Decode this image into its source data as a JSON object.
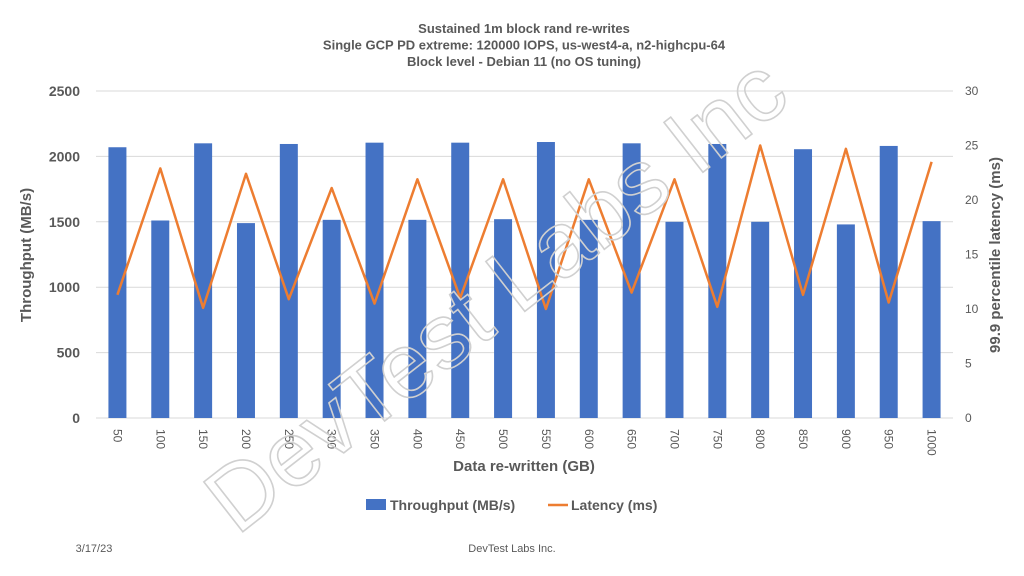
{
  "chart_data": {
    "type": "bar",
    "title_lines": [
      "Sustained 1m block rand re-writes",
      "Single GCP PD extreme: 120000 IOPS, us-west4-a, n2-highcpu-64",
      "Block level - Debian 11 (no OS tuning)"
    ],
    "xlabel": "Data re-written (GB)",
    "ylabel": "Throughput (MB/s)",
    "y2label": "99.9 percentile latency (ms)",
    "categories": [
      "50",
      "100",
      "150",
      "200",
      "250",
      "300",
      "350",
      "400",
      "450",
      "500",
      "550",
      "600",
      "650",
      "700",
      "750",
      "800",
      "850",
      "900",
      "950",
      "1000"
    ],
    "ylim": [
      0,
      2500
    ],
    "yticks": [
      "0",
      "500",
      "1000",
      "1500",
      "2000",
      "2500"
    ],
    "y2lim": [
      0,
      30
    ],
    "y2ticks": [
      "0",
      "5",
      "10",
      "15",
      "20",
      "25",
      "30"
    ],
    "grid": true,
    "legend_position": "bottom",
    "series": [
      {
        "name": "Throughput (MB/s)",
        "kind": "bar",
        "axis": "left",
        "color": "#4472c4",
        "values": [
          2070,
          1510,
          2100,
          1490,
          2095,
          1515,
          2105,
          1515,
          2105,
          1520,
          2110,
          1515,
          2100,
          1500,
          2095,
          1500,
          2055,
          1480,
          2080,
          1505
        ]
      },
      {
        "name": "Latency (ms)",
        "kind": "line",
        "axis": "right",
        "color": "#ed7d31",
        "values": [
          11.3,
          22.9,
          10.1,
          22.4,
          10.9,
          21.1,
          10.5,
          21.9,
          11.0,
          21.9,
          10.0,
          21.9,
          11.5,
          21.9,
          10.2,
          25.0,
          11.3,
          24.7,
          10.6,
          23.5
        ]
      }
    ]
  },
  "footer": {
    "date": "3/17/23",
    "company": "DevTest Labs Inc."
  },
  "watermark": "DevTest Labs Inc"
}
